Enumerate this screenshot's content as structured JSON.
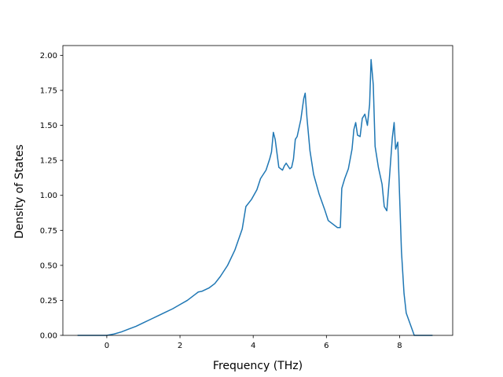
{
  "chart_data": {
    "type": "line",
    "title": "",
    "xlabel": "Frequency (THz)",
    "ylabel": "Density of States",
    "xlim": [
      -1.2,
      9.45
    ],
    "ylim": [
      0.0,
      2.07
    ],
    "xticks": [
      0,
      2,
      4,
      6,
      8
    ],
    "xtick_labels": [
      "0",
      "2",
      "4",
      "6",
      "8"
    ],
    "yticks": [
      0.0,
      0.25,
      0.5,
      0.75,
      1.0,
      1.25,
      1.5,
      1.75,
      2.0
    ],
    "ytick_labels": [
      "0.00",
      "0.25",
      "0.50",
      "0.75",
      "1.00",
      "1.25",
      "1.50",
      "1.75",
      "2.00"
    ],
    "grid": false,
    "legend": "none",
    "color": "#1f77b4",
    "series": [
      {
        "x": [
          -0.8,
          -0.6,
          -0.3,
          0.0,
          0.2,
          0.4,
          0.6,
          0.8,
          1.0,
          1.2,
          1.4,
          1.6,
          1.8,
          2.0,
          2.2,
          2.4,
          2.5,
          2.6,
          2.8,
          2.95,
          3.1,
          3.3,
          3.5,
          3.7,
          3.8,
          3.95,
          4.1,
          4.2,
          4.35,
          4.45,
          4.5,
          4.55,
          4.6,
          4.7,
          4.8,
          4.85,
          4.9,
          5.0,
          5.05,
          5.1,
          5.15,
          5.2,
          5.3,
          5.38,
          5.42,
          5.47,
          5.55,
          5.65,
          5.8,
          5.95,
          6.05,
          6.3,
          6.38,
          6.42,
          6.5,
          6.6,
          6.7,
          6.75,
          6.8,
          6.85,
          6.92,
          6.98,
          7.05,
          7.12,
          7.18,
          7.22,
          7.28,
          7.33,
          7.42,
          7.52,
          7.58,
          7.65,
          7.72,
          7.8,
          7.85,
          7.89,
          7.95,
          8.05,
          8.12,
          8.18,
          8.4,
          8.65,
          8.9
        ],
        "y": [
          0.0,
          0.0,
          0.0,
          0.0,
          0.01,
          0.025,
          0.045,
          0.065,
          0.09,
          0.115,
          0.14,
          0.165,
          0.19,
          0.22,
          0.25,
          0.29,
          0.31,
          0.315,
          0.34,
          0.37,
          0.42,
          0.5,
          0.61,
          0.76,
          0.92,
          0.97,
          1.04,
          1.12,
          1.18,
          1.26,
          1.31,
          1.45,
          1.4,
          1.2,
          1.18,
          1.21,
          1.23,
          1.19,
          1.2,
          1.26,
          1.4,
          1.42,
          1.54,
          1.69,
          1.73,
          1.55,
          1.32,
          1.15,
          1.01,
          0.9,
          0.82,
          0.77,
          0.77,
          1.05,
          1.12,
          1.19,
          1.33,
          1.47,
          1.52,
          1.43,
          1.42,
          1.55,
          1.58,
          1.5,
          1.65,
          1.97,
          1.79,
          1.35,
          1.2,
          1.08,
          0.92,
          0.89,
          1.12,
          1.41,
          1.52,
          1.33,
          1.38,
          0.6,
          0.3,
          0.16,
          0.0,
          0.0,
          0.0
        ]
      }
    ]
  }
}
